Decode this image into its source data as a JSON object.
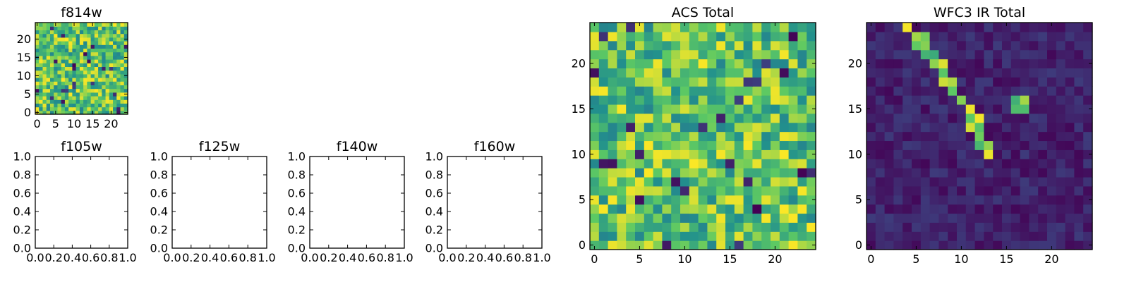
{
  "colormap": [
    "#440154",
    "#3b528b",
    "#21908d",
    "#5dc963",
    "#fde725"
  ],
  "chart_data": [
    {
      "type": "heatmap",
      "title": "f814w",
      "grid_size": 25,
      "xticks": [
        "0",
        "5",
        "10",
        "15",
        "20"
      ],
      "yticks": [
        "0",
        "5",
        "10",
        "15",
        "20"
      ],
      "xlim": [
        -0.5,
        24.5
      ],
      "ylim": [
        -0.5,
        24.5
      ],
      "pattern": "noise",
      "value_range": [
        0,
        1
      ]
    },
    {
      "type": "heatmap",
      "title": "f105w",
      "empty": true,
      "xticks": [
        "0.0",
        "0.2",
        "0.4",
        "0.6",
        "0.8",
        "1.0"
      ],
      "yticks": [
        "0.0",
        "0.2",
        "0.4",
        "0.6",
        "0.8",
        "1.0"
      ],
      "xlim": [
        0,
        1
      ],
      "ylim": [
        0,
        1
      ]
    },
    {
      "type": "heatmap",
      "title": "f125w",
      "empty": true,
      "xticks": [
        "0.0",
        "0.2",
        "0.4",
        "0.6",
        "0.8",
        "1.0"
      ],
      "yticks": [
        "0.0",
        "0.2",
        "0.4",
        "0.6",
        "0.8",
        "1.0"
      ],
      "xlim": [
        0,
        1
      ],
      "ylim": [
        0,
        1
      ]
    },
    {
      "type": "heatmap",
      "title": "f140w",
      "empty": true,
      "xticks": [
        "0.0",
        "0.2",
        "0.4",
        "0.6",
        "0.8",
        "1.0"
      ],
      "yticks": [
        "0.0",
        "0.2",
        "0.4",
        "0.6",
        "0.8",
        "1.0"
      ],
      "xlim": [
        0,
        1
      ],
      "ylim": [
        0,
        1
      ]
    },
    {
      "type": "heatmap",
      "title": "f160w",
      "empty": true,
      "xticks": [
        "0.0",
        "0.2",
        "0.4",
        "0.6",
        "0.8",
        "1.0"
      ],
      "yticks": [
        "0.0",
        "0.2",
        "0.4",
        "0.6",
        "0.8",
        "1.0"
      ],
      "xlim": [
        0,
        1
      ],
      "ylim": [
        0,
        1
      ]
    },
    {
      "type": "heatmap",
      "title": "ACS Total",
      "grid_size": 25,
      "xticks": [
        "0",
        "5",
        "10",
        "15",
        "20"
      ],
      "yticks": [
        "0",
        "5",
        "10",
        "15",
        "20"
      ],
      "xlim": [
        -0.5,
        24.5
      ],
      "ylim": [
        -0.5,
        24.5
      ],
      "pattern": "noise",
      "value_range": [
        0,
        1
      ]
    },
    {
      "type": "heatmap",
      "title": "WFC3 IR Total",
      "grid_size": 25,
      "xticks": [
        "0",
        "5",
        "10",
        "15",
        "20"
      ],
      "yticks": [
        "0",
        "5",
        "10",
        "15",
        "20"
      ],
      "xlim": [
        -0.5,
        24.5
      ],
      "ylim": [
        -0.5,
        24.5
      ],
      "pattern": "streak",
      "value_range": [
        0,
        1
      ],
      "streak_cells": [
        [
          4,
          24
        ],
        [
          5,
          23
        ],
        [
          6,
          23
        ],
        [
          5,
          22
        ],
        [
          6,
          22
        ],
        [
          6,
          21
        ],
        [
          7,
          21
        ],
        [
          7,
          20
        ],
        [
          8,
          20
        ],
        [
          8,
          19
        ],
        [
          8,
          18
        ],
        [
          9,
          18
        ],
        [
          9,
          17
        ],
        [
          10,
          16
        ],
        [
          11,
          15
        ],
        [
          11,
          14
        ],
        [
          12,
          14
        ],
        [
          11,
          13
        ],
        [
          12,
          13
        ],
        [
          12,
          12
        ],
        [
          12,
          11
        ],
        [
          13,
          11
        ],
        [
          13,
          10
        ],
        [
          16,
          16
        ],
        [
          17,
          16
        ],
        [
          16,
          15
        ],
        [
          17,
          15
        ]
      ]
    }
  ]
}
